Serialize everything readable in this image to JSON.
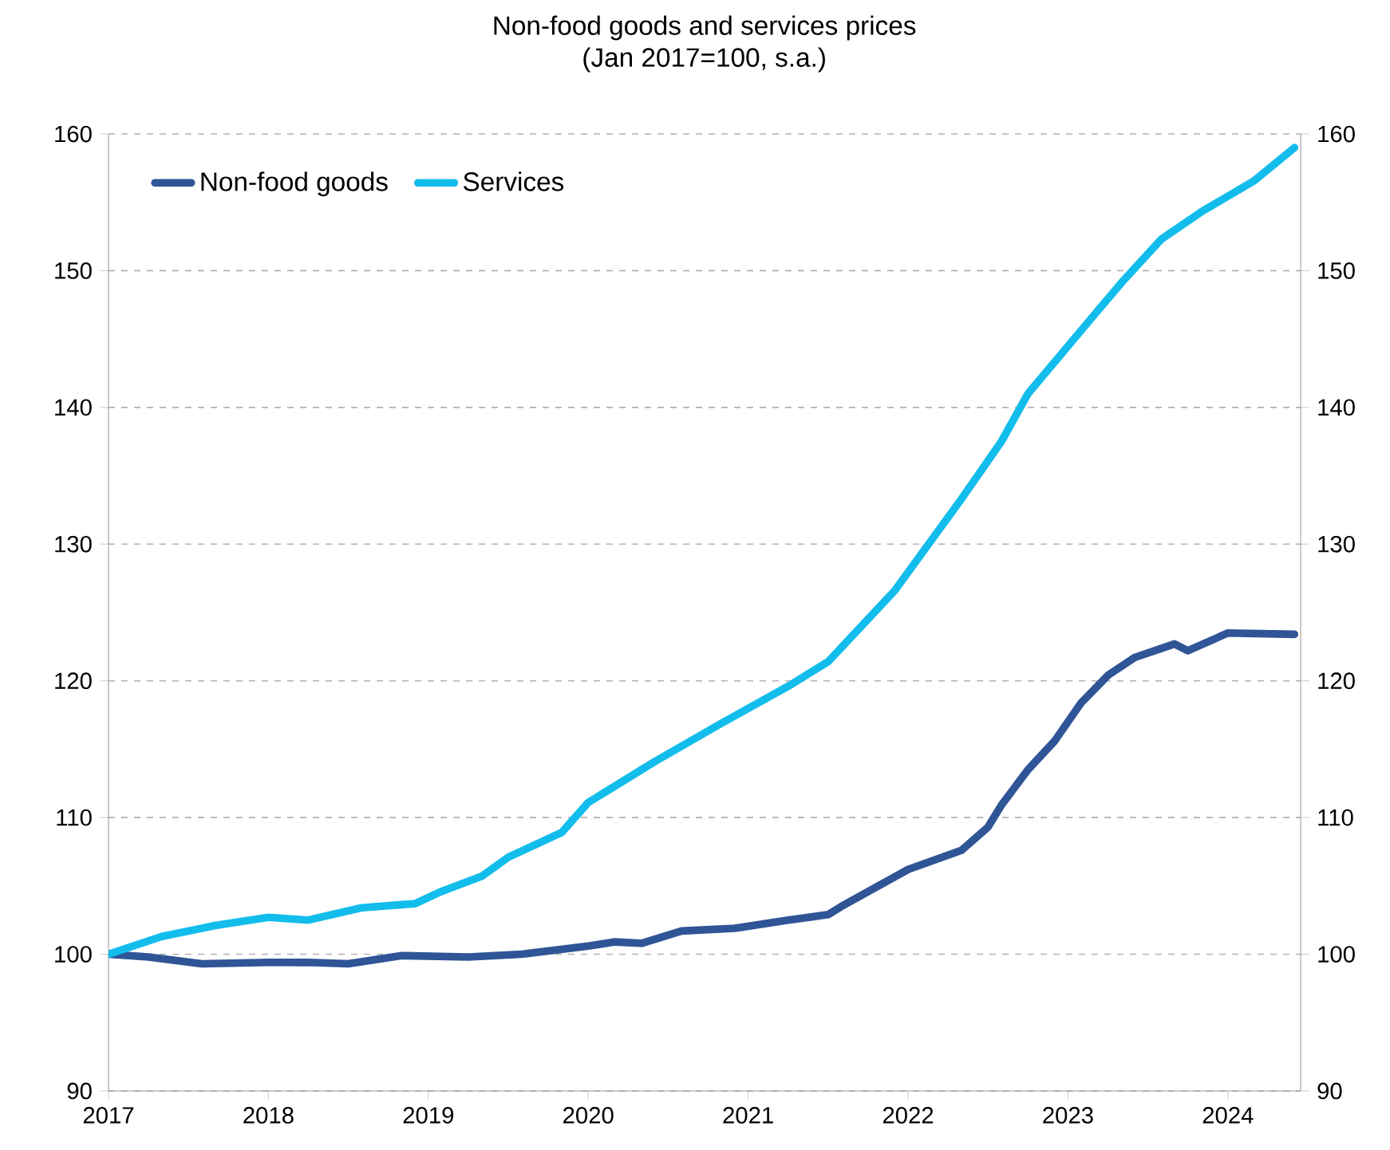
{
  "chart_data": {
    "type": "line",
    "title": "Non-food goods and services prices",
    "subtitle": "(Jan 2017=100, s.a.)",
    "xlim": [
      "2017-01-01",
      "2024-06-15"
    ],
    "xticks": [
      {
        "value": "2017-01",
        "label": "2017"
      },
      {
        "value": "2018-01",
        "label": "2018"
      },
      {
        "value": "2019-01",
        "label": "2019"
      },
      {
        "value": "2020-01",
        "label": "2020"
      },
      {
        "value": "2021-01",
        "label": "2021"
      },
      {
        "value": "2022-01",
        "label": "2022"
      },
      {
        "value": "2023-01",
        "label": "2023"
      },
      {
        "value": "2024-01",
        "label": "2024"
      }
    ],
    "ylim": [
      90,
      160
    ],
    "yticks": [
      90,
      100,
      110,
      120,
      130,
      140,
      150,
      160
    ],
    "y2lim": [
      90,
      160
    ],
    "y2ticks": [
      90,
      100,
      110,
      120,
      130,
      140,
      150,
      160
    ],
    "grid": "y",
    "legend": "top left",
    "line_style": "solid",
    "marker": "none",
    "series": [
      {
        "name": "Non-food goods",
        "color": "#2f5597",
        "x": [
          "2017-01",
          "2017-04",
          "2017-08",
          "2018-01",
          "2018-04",
          "2018-07",
          "2018-11",
          "2019-04",
          "2019-08",
          "2020-01",
          "2020-03",
          "2020-05",
          "2020-08",
          "2020-12",
          "2021-04",
          "2021-07",
          "2021-08",
          "2022-01",
          "2022-05",
          "2022-07",
          "2022-08",
          "2022-10",
          "2022-12",
          "2023-02",
          "2023-04",
          "2023-06",
          "2023-09",
          "2023-10",
          "2024-01",
          "2024-06"
        ],
        "values": [
          100,
          99.8,
          99.3,
          99.4,
          99.4,
          99.3,
          99.9,
          99.8,
          100,
          100.6,
          100.9,
          100.8,
          101.7,
          101.9,
          102.5,
          102.9,
          103.5,
          106.2,
          107.6,
          109.3,
          110.9,
          113.5,
          115.6,
          118.4,
          120.4,
          121.7,
          122.7,
          122.2,
          123.5,
          123.4
        ]
      },
      {
        "name": "Services",
        "color": "#12bdec",
        "x": [
          "2017-01",
          "2017-05",
          "2017-09",
          "2018-01",
          "2018-04",
          "2018-08",
          "2018-12",
          "2019-02",
          "2019-05",
          "2019-07",
          "2019-11",
          "2020-01",
          "2020-06",
          "2020-11",
          "2021-04",
          "2021-07",
          "2021-12",
          "2022-05",
          "2022-08",
          "2022-10",
          "2023-03",
          "2023-05",
          "2023-08",
          "2023-11",
          "2024-03",
          "2024-06"
        ],
        "values": [
          100,
          101.3,
          102.1,
          102.7,
          102.5,
          103.4,
          103.7,
          104.6,
          105.7,
          107.1,
          108.9,
          111.1,
          114.1,
          116.9,
          119.6,
          121.4,
          126.6,
          133.3,
          137.5,
          141,
          146.8,
          149.1,
          152.3,
          154.3,
          156.6,
          159.0
        ]
      }
    ]
  }
}
